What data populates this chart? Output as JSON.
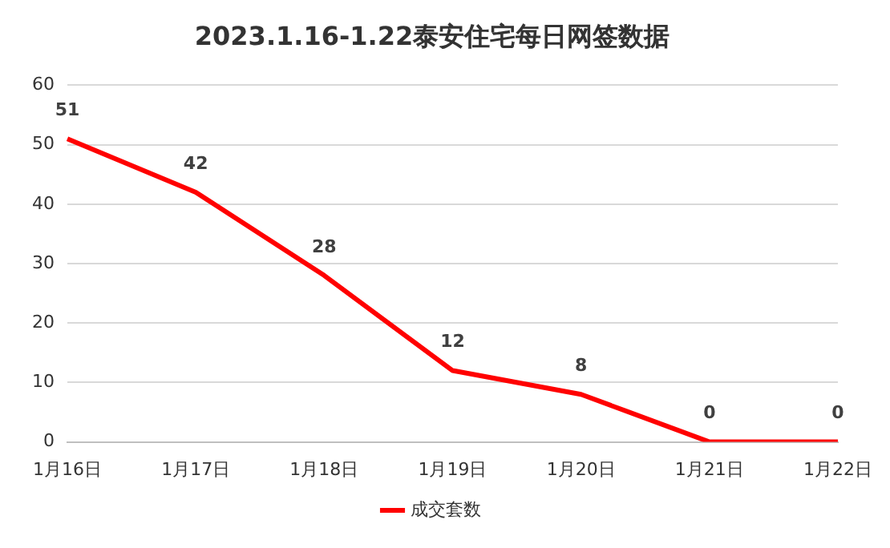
{
  "chart_data": {
    "type": "line",
    "title": "2023.1.16-1.22泰安住宅每日网签数据",
    "categories": [
      "1月16日",
      "1月17日",
      "1月18日",
      "1月19日",
      "1月20日",
      "1月21日",
      "1月22日"
    ],
    "series": [
      {
        "name": "成交套数",
        "color": "#ff0000",
        "values": [
          51,
          42,
          28,
          12,
          8,
          0,
          0
        ]
      }
    ],
    "ylim": [
      0,
      60
    ],
    "yticks": [
      0,
      10,
      20,
      30,
      40,
      50,
      60
    ],
    "grid": "y",
    "legend": "bottom",
    "data_labels": true,
    "marker": "none",
    "line_style": "solid"
  }
}
